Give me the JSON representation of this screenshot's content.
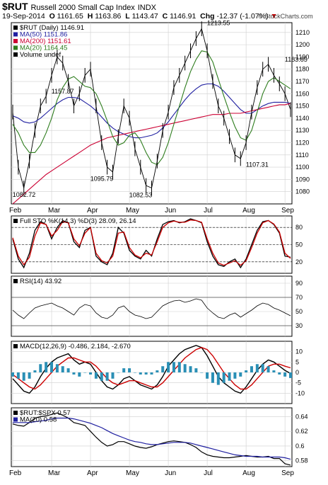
{
  "header": {
    "symbol": "$RUT",
    "name": "Russell 2000 Small Cap Index",
    "exchange": "INDX",
    "date": "19-Sep-2014",
    "open_label": "O",
    "open": "1161.65",
    "high_label": "H",
    "high": "1163.86",
    "low_label": "L",
    "low": "1143.47",
    "close_label": "C",
    "close": "1146.91",
    "chg_label": "Chg",
    "chg": "-12.37 (-1.07%)",
    "chg_arrow": "▼",
    "brand": "© StockCharts.com"
  },
  "colors": {
    "price": "#000000",
    "ma50": "#1f1fa0",
    "ma200": "#cc0033",
    "ma20": "#2e7d1e",
    "stoch_k": "#000000",
    "stoch_d": "#cc0000",
    "macd_hist": "#2a8fb5",
    "rel": "#000000",
    "rel_ma": "#1f1fa0",
    "grid": "#cfcfcf"
  },
  "months": [
    "Feb",
    "Mar",
    "Apr",
    "May",
    "Jun",
    "Jul",
    "Aug",
    "Sep"
  ],
  "chart_data": [
    {
      "type": "line",
      "title": "$RUT Russell 2000 Small Cap Index INDX",
      "legend": [
        {
          "label": "$RUT (Daily)",
          "value": "1146.91"
        },
        {
          "label": "MA(50)",
          "value": "1151.86"
        },
        {
          "label": "MA(200)",
          "value": "1151.61"
        },
        {
          "label": "MA(20)",
          "value": "1164.45"
        },
        {
          "label": "Volume undef",
          "value": ""
        }
      ],
      "y_ticks": [
        1080,
        1090,
        1100,
        1110,
        1120,
        1130,
        1140,
        1150,
        1160,
        1170,
        1180,
        1190,
        1200,
        1210
      ],
      "ylim": [
        1070,
        1218
      ],
      "annotations": [
        {
          "label": "1082.72",
          "x": "Feb",
          "y": 1082.72
        },
        {
          "label": "1157.87",
          "x": "Mar",
          "y": 1157.87
        },
        {
          "label": "1095.79",
          "x": "Apr",
          "y": 1095.79
        },
        {
          "label": "1082.53",
          "x": "May",
          "y": 1082.53
        },
        {
          "label": "1213.55",
          "x": "Jul",
          "y": 1213.55
        },
        {
          "label": "1107.31",
          "x": "Aug",
          "y": 1107.31
        },
        {
          "label": "1183.85",
          "x": "Sep",
          "y": 1183.85
        }
      ],
      "series": [
        {
          "name": "$RUT (Daily)",
          "values": [
            1145,
            1100,
            1083,
            1105,
            1130,
            1150,
            1158,
            1175,
            1190,
            1185,
            1170,
            1150,
            1160,
            1175,
            1180,
            1150,
            1120,
            1100,
            1096,
            1125,
            1150,
            1140,
            1115,
            1100,
            1085,
            1083,
            1105,
            1130,
            1145,
            1165,
            1175,
            1185,
            1195,
            1205,
            1213,
            1195,
            1170,
            1150,
            1140,
            1125,
            1110,
            1107,
            1120,
            1145,
            1165,
            1180,
            1184,
            1175,
            1168,
            1160,
            1147
          ]
        },
        {
          "name": "MA(50)",
          "values": [
            1142,
            1140,
            1137,
            1136,
            1137,
            1140,
            1144,
            1148,
            1152,
            1155,
            1157,
            1157,
            1156,
            1153,
            1150,
            1146,
            1141,
            1136,
            1132,
            1129,
            1127,
            1125,
            1124,
            1124,
            1125,
            1126,
            1128,
            1132,
            1137,
            1143,
            1149,
            1155,
            1160,
            1164,
            1167,
            1168,
            1168,
            1166,
            1162,
            1157,
            1152,
            1147,
            1144,
            1144,
            1147,
            1150,
            1152,
            1153,
            1153,
            1153,
            1152
          ]
        },
        {
          "name": "MA(200)",
          "values": [
            1070,
            1074,
            1078,
            1082,
            1086,
            1090,
            1094,
            1097,
            1100,
            1103,
            1106,
            1109,
            1112,
            1115,
            1118,
            1120,
            1122,
            1124,
            1125,
            1126,
            1127,
            1128,
            1129,
            1130,
            1131,
            1132,
            1133,
            1134,
            1135,
            1136,
            1137,
            1138,
            1139,
            1140,
            1141,
            1142,
            1143,
            1143,
            1143,
            1144,
            1144,
            1144,
            1145,
            1146,
            1147,
            1148,
            1149,
            1150,
            1151,
            1151,
            1152
          ]
        },
        {
          "name": "MA(20)",
          "values": [
            1135,
            1128,
            1118,
            1112,
            1112,
            1118,
            1128,
            1140,
            1155,
            1165,
            1172,
            1174,
            1170,
            1166,
            1165,
            1160,
            1150,
            1138,
            1125,
            1118,
            1120,
            1126,
            1128,
            1122,
            1112,
            1104,
            1102,
            1108,
            1120,
            1135,
            1150,
            1165,
            1178,
            1188,
            1195,
            1194,
            1186,
            1172,
            1158,
            1145,
            1133,
            1124,
            1122,
            1130,
            1145,
            1160,
            1170,
            1173,
            1170,
            1167,
            1164
          ]
        }
      ]
    },
    {
      "type": "line",
      "title": "Full STO %K(14,3) %D(3)",
      "legend": [
        {
          "label": "Full STO %K(14,3) %D(3)",
          "value": "28.09, 26.14"
        }
      ],
      "y_ticks": [
        20,
        50,
        80
      ],
      "ylim": [
        0,
        100
      ],
      "series": [
        {
          "name": "%K",
          "values": [
            60,
            25,
            10,
            35,
            75,
            90,
            85,
            60,
            80,
            92,
            88,
            55,
            45,
            75,
            80,
            30,
            20,
            15,
            35,
            80,
            70,
            40,
            30,
            25,
            40,
            30,
            60,
            85,
            90,
            92,
            88,
            90,
            95,
            92,
            88,
            55,
            30,
            15,
            12,
            20,
            25,
            10,
            25,
            50,
            75,
            90,
            92,
            85,
            70,
            30,
            28
          ]
        },
        {
          "name": "%D",
          "values": [
            62,
            30,
            15,
            28,
            65,
            88,
            85,
            65,
            75,
            90,
            88,
            60,
            48,
            70,
            80,
            35,
            22,
            18,
            30,
            70,
            72,
            45,
            32,
            27,
            35,
            32,
            55,
            80,
            88,
            91,
            89,
            89,
            93,
            92,
            89,
            60,
            35,
            18,
            14,
            18,
            22,
            14,
            22,
            45,
            70,
            88,
            92,
            86,
            72,
            35,
            26
          ]
        }
      ]
    },
    {
      "type": "line",
      "title": "RSI(14)",
      "legend": [
        {
          "label": "RSI(14)",
          "value": "43.92"
        }
      ],
      "y_ticks": [
        30,
        50,
        70,
        90
      ],
      "ylim": [
        15,
        100
      ],
      "series": [
        {
          "name": "RSI(14)",
          "values": [
            52,
            45,
            40,
            48,
            55,
            58,
            60,
            62,
            58,
            55,
            50,
            45,
            55,
            60,
            58,
            48,
            42,
            40,
            45,
            55,
            58,
            50,
            45,
            43,
            40,
            42,
            50,
            58,
            62,
            65,
            66,
            63,
            65,
            68,
            66,
            55,
            48,
            42,
            40,
            45,
            48,
            42,
            47,
            52,
            58,
            62,
            60,
            55,
            52,
            48,
            44
          ]
        }
      ]
    },
    {
      "type": "line",
      "title": "MACD(12,26,9)",
      "legend": [
        {
          "label": "MACD(12,26,9)",
          "value": "-0.486, 2.184, -2.670"
        }
      ],
      "y_ticks": [
        -10,
        -5,
        0,
        5,
        10
      ],
      "ylim": [
        -15,
        15
      ],
      "series": [
        {
          "name": "MACD",
          "values": [
            -3,
            -6,
            -9,
            -10,
            -7,
            -2,
            2,
            5,
            7,
            8,
            9,
            6,
            4,
            5,
            4,
            0,
            -4,
            -7,
            -8,
            -6,
            -3,
            -2,
            -4,
            -6,
            -7,
            -8,
            -6,
            -2,
            3,
            6,
            9,
            11,
            12,
            13,
            12,
            8,
            3,
            -2,
            -5,
            -7,
            -9,
            -10,
            -7,
            -3,
            1,
            4,
            6,
            5,
            3,
            1,
            -0.5
          ]
        },
        {
          "name": "Signal",
          "values": [
            -1,
            -3,
            -5,
            -7,
            -8,
            -6,
            -3,
            0,
            3,
            5,
            7,
            7,
            6,
            5,
            5,
            3,
            0,
            -3,
            -5,
            -6,
            -5,
            -4,
            -4,
            -5,
            -6,
            -7,
            -7,
            -5,
            -2,
            1,
            4,
            7,
            9,
            11,
            12,
            11,
            8,
            4,
            0,
            -3,
            -6,
            -8,
            -8,
            -6,
            -3,
            0,
            3,
            4,
            4,
            3,
            2.2
          ]
        },
        {
          "name": "Histogram",
          "values": [
            -2,
            -3,
            -4,
            -3,
            1,
            4,
            5,
            5,
            4,
            3,
            2,
            -1,
            -2,
            0,
            -1,
            -3,
            -4,
            -4,
            -3,
            0,
            2,
            2,
            0,
            -1,
            -1,
            -1,
            1,
            3,
            5,
            5,
            5,
            4,
            3,
            2,
            0,
            -3,
            -5,
            -6,
            -5,
            -4,
            -3,
            -2,
            1,
            3,
            4,
            4,
            3,
            1,
            -1,
            -2,
            -2.7
          ]
        }
      ]
    },
    {
      "type": "line",
      "title": "$RUT:$SPX",
      "legend": [
        {
          "label": "$RUT:$SPX",
          "value": "0.57"
        },
        {
          "label": "MA(20)",
          "value": "0.58"
        }
      ],
      "y_ticks": [
        0.58,
        0.6,
        0.62,
        0.64
      ],
      "ylim": [
        0.572,
        0.652
      ],
      "series": [
        {
          "name": "$RUT:$SPX",
          "values": [
            0.63,
            0.628,
            0.627,
            0.632,
            0.638,
            0.64,
            0.641,
            0.643,
            0.645,
            0.642,
            0.638,
            0.632,
            0.63,
            0.628,
            0.62,
            0.612,
            0.605,
            0.6,
            0.602,
            0.606,
            0.606,
            0.603,
            0.6,
            0.598,
            0.597,
            0.599,
            0.602,
            0.604,
            0.606,
            0.607,
            0.606,
            0.605,
            0.602,
            0.598,
            0.592,
            0.588,
            0.586,
            0.585,
            0.584,
            0.584,
            0.585,
            0.586,
            0.587,
            0.586,
            0.585,
            0.585,
            0.586,
            0.583,
            0.583,
            0.576,
            0.574
          ]
        },
        {
          "name": "MA(20)",
          "values": [
            0.632,
            0.632,
            0.632,
            0.632,
            0.633,
            0.634,
            0.635,
            0.637,
            0.638,
            0.638,
            0.638,
            0.637,
            0.635,
            0.633,
            0.631,
            0.628,
            0.625,
            0.621,
            0.617,
            0.614,
            0.611,
            0.608,
            0.606,
            0.605,
            0.603,
            0.602,
            0.602,
            0.603,
            0.604,
            0.605,
            0.605,
            0.605,
            0.604,
            0.602,
            0.6,
            0.598,
            0.596,
            0.594,
            0.592,
            0.59,
            0.588,
            0.587,
            0.586,
            0.586,
            0.586,
            0.585,
            0.585,
            0.585,
            0.585,
            0.584,
            0.582
          ]
        }
      ]
    }
  ]
}
